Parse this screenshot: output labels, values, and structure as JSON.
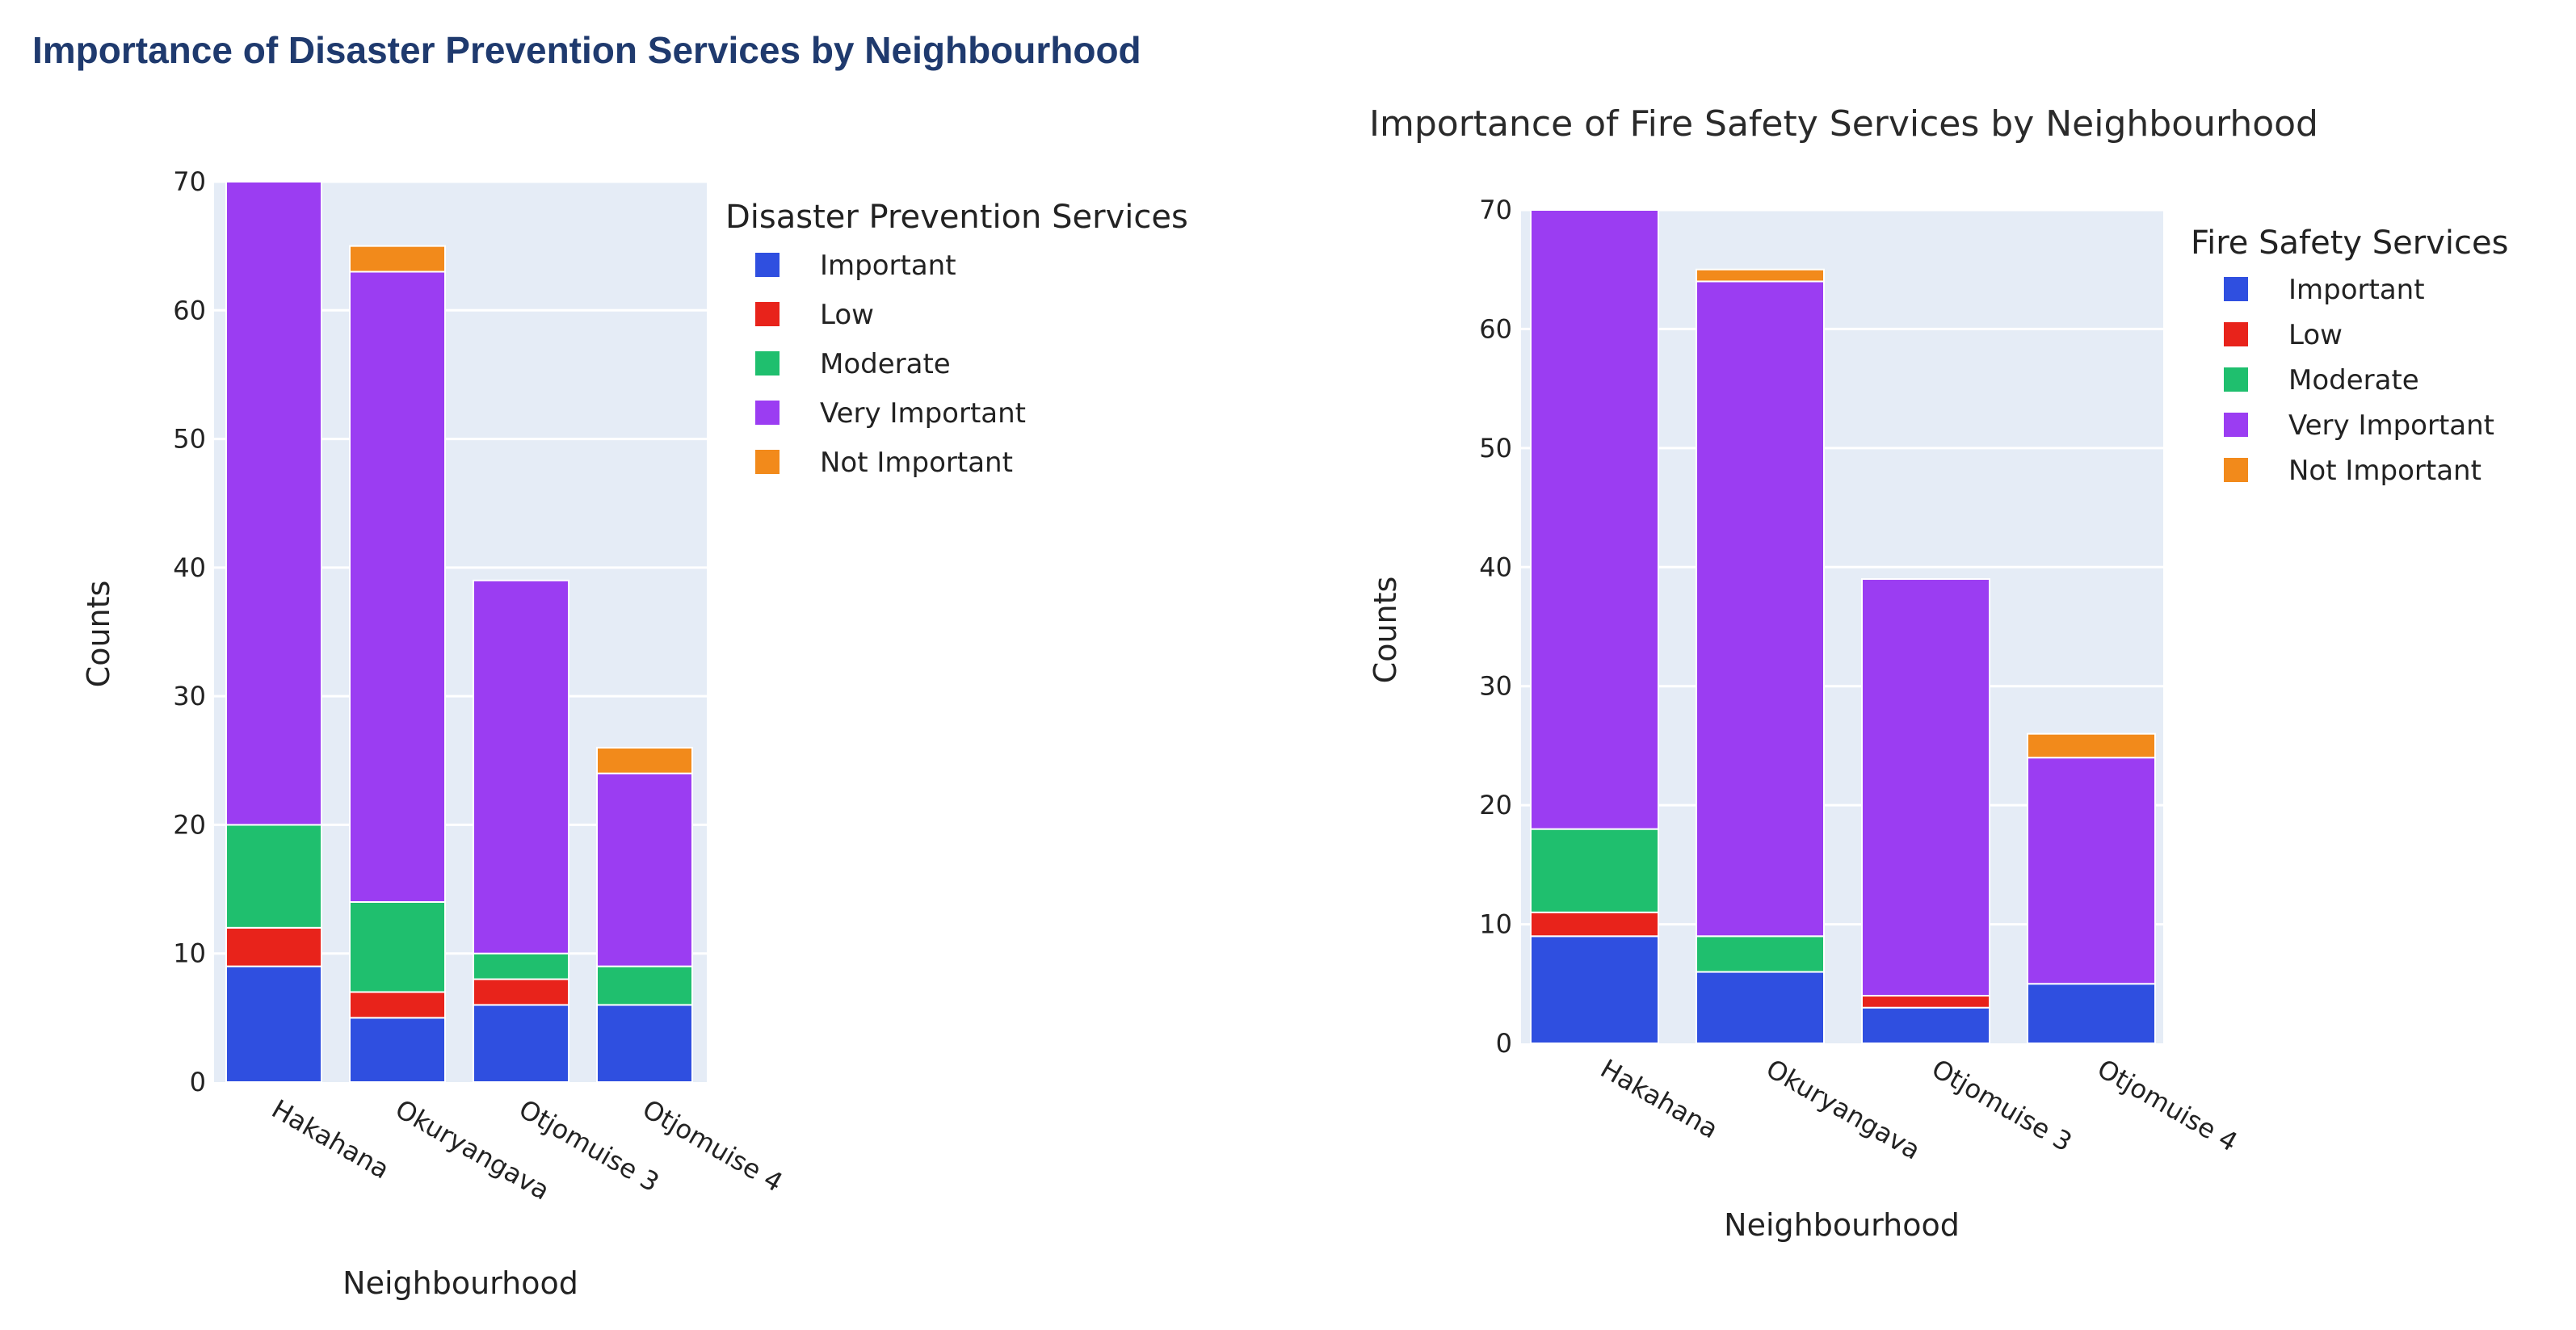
{
  "chart_data": [
    {
      "type": "bar",
      "stacked": true,
      "title": "Importance of Disaster Prevention Services by Neighbourhood",
      "xlabel": "Neighbourhood",
      "ylabel": "Counts",
      "ylim": [
        0,
        70
      ],
      "yticks": [
        0,
        10,
        20,
        30,
        40,
        50,
        60,
        70
      ],
      "categories": [
        "Hakahana",
        "Okuryangava",
        "Otjomuise 3",
        "Otjomuise 4"
      ],
      "legend_title": "Disaster Prevention Services",
      "series": [
        {
          "name": "Important",
          "color": "#2f4fe0",
          "values": [
            9,
            5,
            6,
            6
          ]
        },
        {
          "name": "Low",
          "color": "#e8231b",
          "values": [
            3,
            2,
            2,
            0
          ]
        },
        {
          "name": "Moderate",
          "color": "#1fbf6e",
          "values": [
            8,
            7,
            2,
            3
          ]
        },
        {
          "name": "Very Important",
          "color": "#9b3df2",
          "values": [
            50,
            49,
            29,
            15
          ]
        },
        {
          "name": "Not Important",
          "color": "#f28a1b",
          "values": [
            0,
            2,
            0,
            2
          ]
        }
      ]
    },
    {
      "type": "bar",
      "stacked": true,
      "title": "Importance of Fire Safety Services by Neighbourhood",
      "xlabel": "Neighbourhood",
      "ylabel": "Counts",
      "ylim": [
        0,
        70
      ],
      "yticks": [
        0,
        10,
        20,
        30,
        40,
        50,
        60,
        70
      ],
      "categories": [
        "Hakahana",
        "Okuryangava",
        "Otjomuise 3",
        "Otjomuise 4"
      ],
      "legend_title": "Fire Safety Services",
      "series": [
        {
          "name": "Important",
          "color": "#2f4fe0",
          "values": [
            9,
            6,
            3,
            5
          ]
        },
        {
          "name": "Low",
          "color": "#e8231b",
          "values": [
            2,
            0,
            1,
            0
          ]
        },
        {
          "name": "Moderate",
          "color": "#1fbf6e",
          "values": [
            7,
            3,
            0,
            0
          ]
        },
        {
          "name": "Very Important",
          "color": "#9b3df2",
          "values": [
            52,
            55,
            35,
            19
          ]
        },
        {
          "name": "Not Important",
          "color": "#f28a1b",
          "values": [
            0,
            1,
            0,
            2
          ]
        }
      ]
    }
  ]
}
